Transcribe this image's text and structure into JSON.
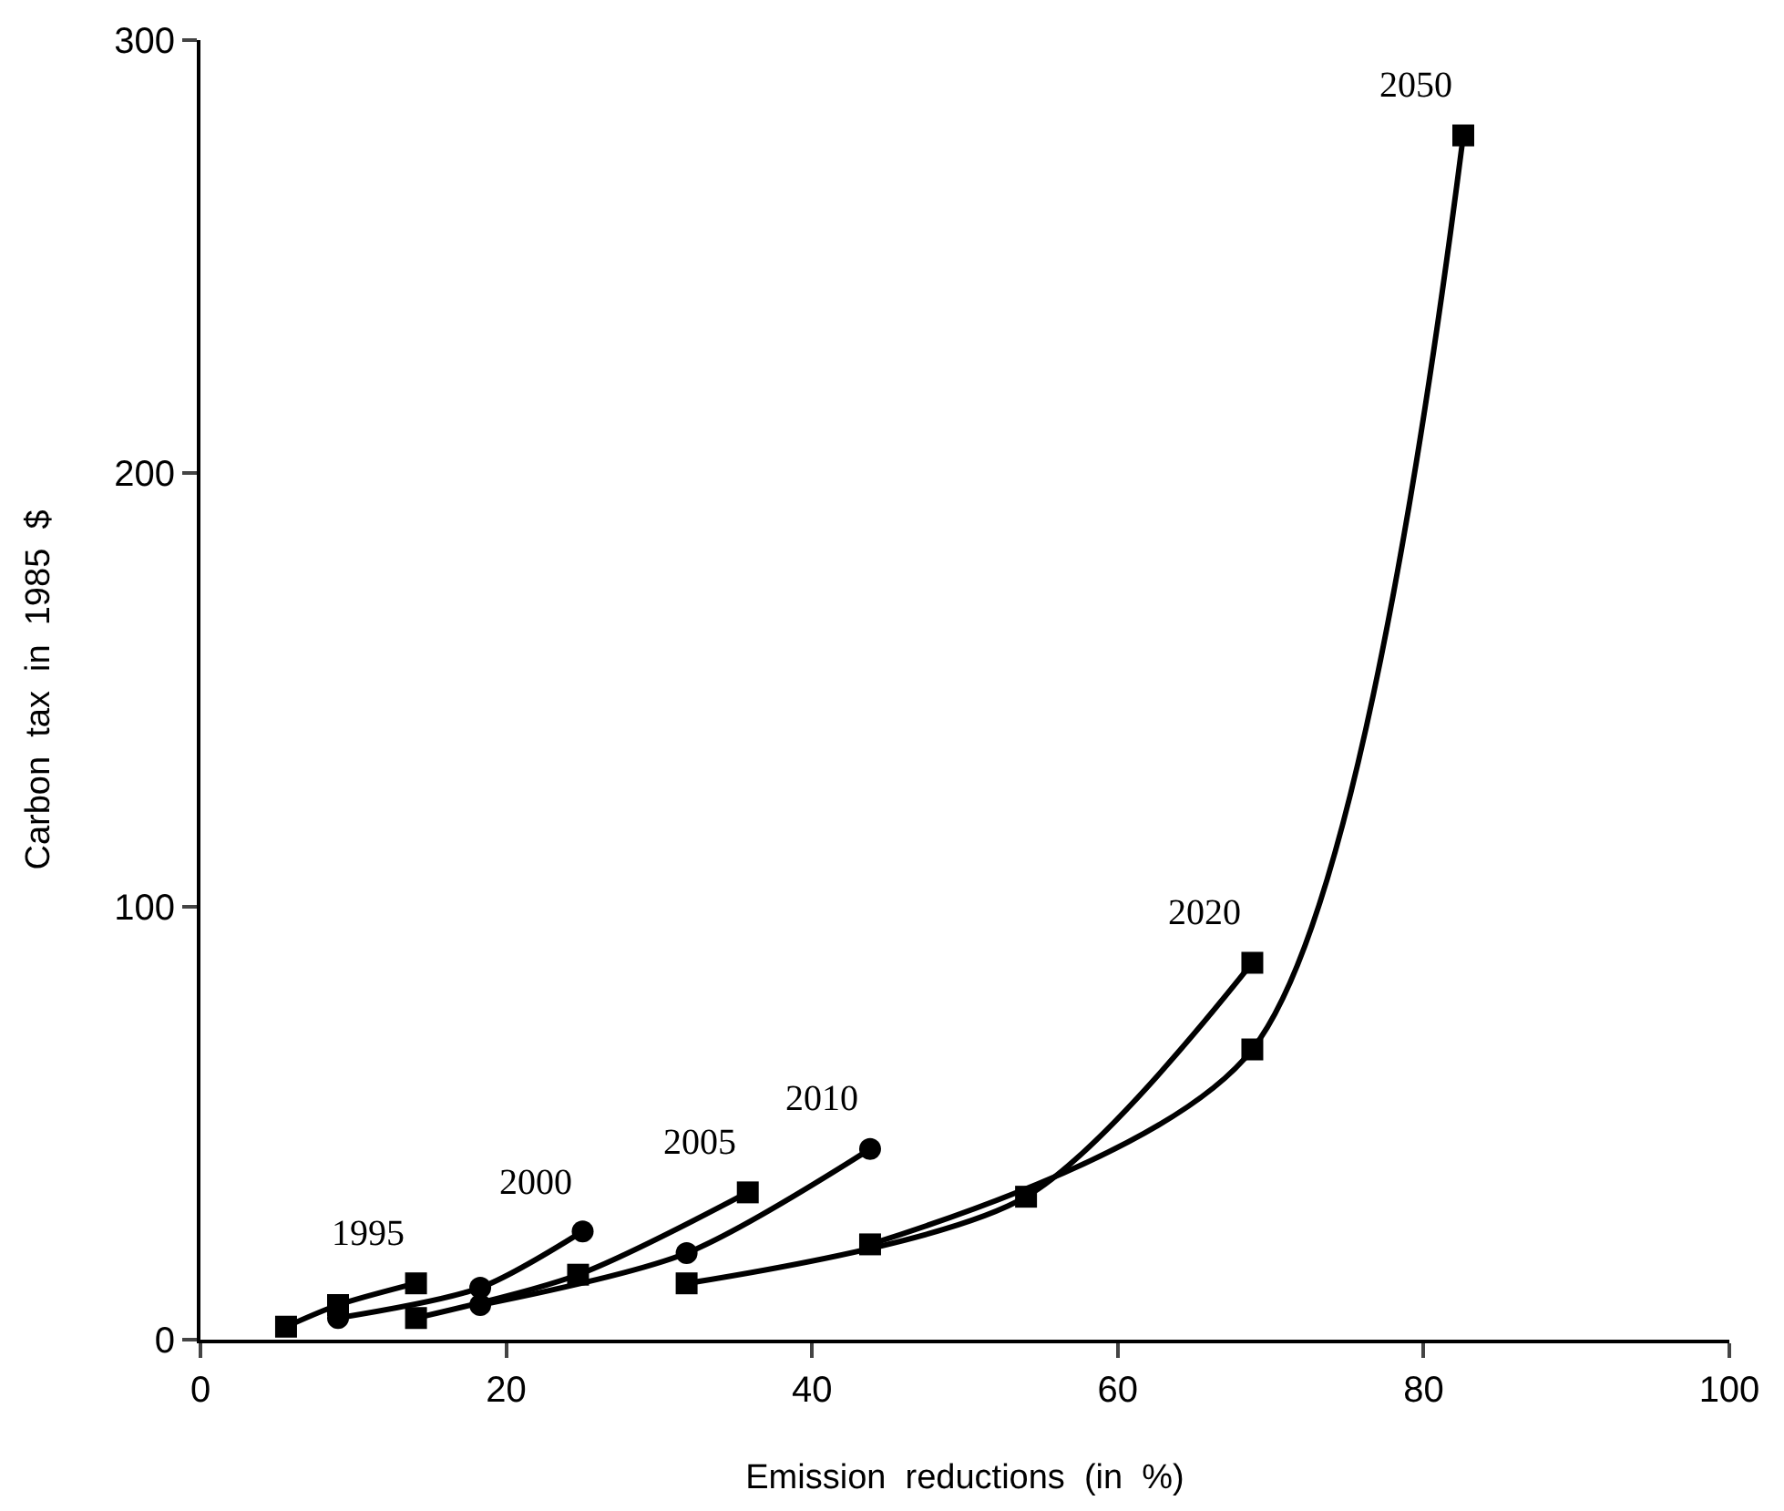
{
  "chart_data": {
    "type": "line",
    "xlabel": "Emission  reductions  (in  %)",
    "ylabel": "Carbon  tax  in  1985  $",
    "xlim": [
      0,
      100
    ],
    "xticks": [
      0,
      20,
      40,
      60,
      80,
      100
    ],
    "ylim": [
      0,
      300
    ],
    "yticks": [
      0,
      100,
      200,
      300
    ],
    "grid": false,
    "legend": false,
    "line_style": "solid",
    "series": [
      {
        "name": "1995",
        "color": "#000000",
        "marker": "square",
        "x": [
          5.6,
          9,
          14.1
        ],
        "values": [
          3,
          8,
          13
        ]
      },
      {
        "name": "2000",
        "color": "#000000",
        "marker": "circle",
        "x": [
          9,
          18.3,
          25
        ],
        "values": [
          5,
          12,
          25
        ]
      },
      {
        "name": "2005",
        "color": "#000000",
        "marker": "square",
        "x": [
          14.1,
          24.7,
          35.8
        ],
        "values": [
          5,
          15,
          34
        ]
      },
      {
        "name": "2010",
        "color": "#000000",
        "marker": "circle",
        "x": [
          18.3,
          31.8,
          43.8
        ],
        "values": [
          8,
          20,
          44
        ]
      },
      {
        "name": "2020",
        "color": "#000000",
        "marker": "square",
        "x": [
          31.8,
          54,
          68.8
        ],
        "values": [
          13,
          33,
          87
        ]
      },
      {
        "name": "2050",
        "color": "#000000",
        "marker": "square",
        "x": [
          43.8,
          68.8,
          82.6
        ],
        "values": [
          22,
          67,
          278
        ]
      }
    ]
  }
}
